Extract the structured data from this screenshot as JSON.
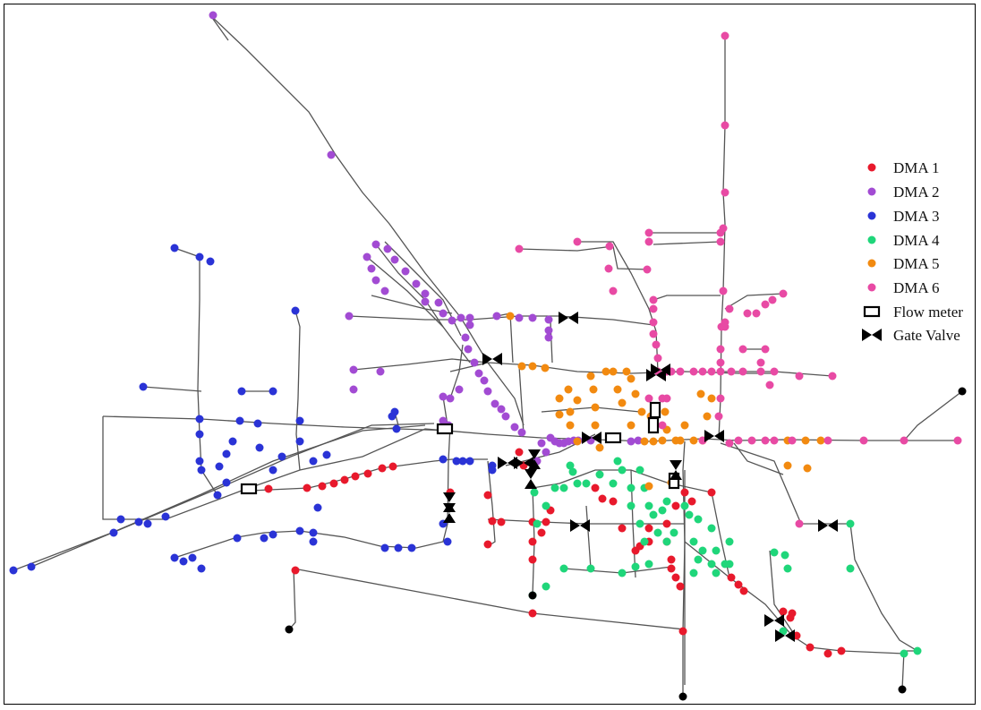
{
  "legend": {
    "items": [
      {
        "label": "DMA 1",
        "color": "#e8192c",
        "kind": "dot"
      },
      {
        "label": "DMA 2",
        "color": "#a24bd3",
        "kind": "dot"
      },
      {
        "label": "DMA 3",
        "color": "#2a33d6",
        "kind": "dot"
      },
      {
        "label": "DMA 4",
        "color": "#1fd67a",
        "kind": "dot"
      },
      {
        "label": "DMA 5",
        "color": "#f28a10",
        "kind": "dot"
      },
      {
        "label": "DMA 6",
        "color": "#e84aa4",
        "kind": "dot"
      },
      {
        "label": "Flow meter",
        "color": "#000000",
        "kind": "flow-meter-icon"
      },
      {
        "label": "Gate Valve",
        "color": "#000000",
        "kind": "gate-valve-icon"
      }
    ]
  },
  "reservoir_color": "#000000"
}
